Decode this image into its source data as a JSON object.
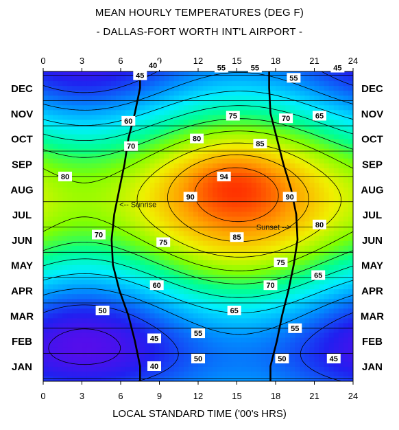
{
  "chart_data": {
    "type": "heatmap",
    "title": "MEAN HOURLY TEMPERATURES (DEG F)",
    "subtitle": "- DALLAS-FORT WORTH INT'L AIRPORT -",
    "xlabel": "LOCAL STANDARD TIME ('00's HRS)",
    "ylabel": "",
    "xlim": [
      0,
      24
    ],
    "x_ticks": [
      "0",
      "3",
      "6",
      "9",
      "12",
      "15",
      "18",
      "21",
      "24"
    ],
    "months": [
      "JAN",
      "FEB",
      "MAR",
      "APR",
      "MAY",
      "JUN",
      "JUL",
      "AUG",
      "SEP",
      "OCT",
      "NOV",
      "DEC"
    ],
    "contour_levels": [
      40,
      45,
      50,
      55,
      60,
      65,
      70,
      75,
      80,
      85,
      90,
      94
    ],
    "contour_labels": [
      {
        "text": "40",
        "hour": 8.5,
        "month": 11.9
      },
      {
        "text": "45",
        "hour": 7.5,
        "month": 11.5
      },
      {
        "text": "55",
        "hour": 13.8,
        "month": 11.8
      },
      {
        "text": "55",
        "hour": 16.4,
        "month": 11.8
      },
      {
        "text": "45",
        "hour": 22.8,
        "month": 11.8
      },
      {
        "text": "55",
        "hour": 19.4,
        "month": 11.4
      },
      {
        "text": "60",
        "hour": 6.6,
        "month": 9.7
      },
      {
        "text": "75",
        "hour": 14.7,
        "month": 9.9
      },
      {
        "text": "70",
        "hour": 18.8,
        "month": 9.8
      },
      {
        "text": "65",
        "hour": 21.4,
        "month": 9.9
      },
      {
        "text": "70",
        "hour": 6.8,
        "month": 8.7
      },
      {
        "text": "80",
        "hour": 11.9,
        "month": 9.0
      },
      {
        "text": "85",
        "hour": 16.8,
        "month": 8.8
      },
      {
        "text": "80",
        "hour": 1.7,
        "month": 7.5
      },
      {
        "text": "94",
        "hour": 14.0,
        "month": 7.5
      },
      {
        "text": "90",
        "hour": 11.4,
        "month": 6.7
      },
      {
        "text": "90",
        "hour": 19.1,
        "month": 6.7
      },
      {
        "text": "80",
        "hour": 21.4,
        "month": 5.6
      },
      {
        "text": "70",
        "hour": 4.3,
        "month": 5.2
      },
      {
        "text": "75",
        "hour": 9.3,
        "month": 4.9
      },
      {
        "text": "85",
        "hour": 15.0,
        "month": 5.1
      },
      {
        "text": "75",
        "hour": 18.4,
        "month": 4.1
      },
      {
        "text": "65",
        "hour": 21.3,
        "month": 3.6
      },
      {
        "text": "60",
        "hour": 8.8,
        "month": 3.2
      },
      {
        "text": "70",
        "hour": 17.6,
        "month": 3.2
      },
      {
        "text": "50",
        "hour": 4.6,
        "month": 2.2
      },
      {
        "text": "65",
        "hour": 14.8,
        "month": 2.2
      },
      {
        "text": "55",
        "hour": 12.0,
        "month": 1.3
      },
      {
        "text": "55",
        "hour": 19.5,
        "month": 1.5
      },
      {
        "text": "45",
        "hour": 8.6,
        "month": 1.1
      },
      {
        "text": "50",
        "hour": 12.0,
        "month": 0.3
      },
      {
        "text": "50",
        "hour": 18.5,
        "month": 0.3
      },
      {
        "text": "45",
        "hour": 22.5,
        "month": 0.3
      },
      {
        "text": "40",
        "hour": 8.6,
        "month": 0.0
      }
    ],
    "annotations": [
      {
        "text": "<-- Sunrise",
        "hour": 5.9,
        "month": 6.4
      },
      {
        "text": "Sunset -->",
        "hour": 16.5,
        "month": 5.5
      }
    ],
    "sunrise_hours": [
      7.5,
      7.1,
      6.6,
      5.9,
      5.4,
      5.3,
      5.5,
      5.9,
      6.3,
      6.6,
      7.1,
      7.5
    ],
    "sunset_hours": [
      17.6,
      18.1,
      18.5,
      19.0,
      19.4,
      19.7,
      19.6,
      19.2,
      18.6,
      18.1,
      17.6,
      17.5
    ],
    "colorscale": [
      "#7a00e8",
      "#2020f0",
      "#0090ff",
      "#00f0ff",
      "#00ff90",
      "#80ff00",
      "#f0f000",
      "#ffa000",
      "#ff3000",
      "#ff0000"
    ]
  }
}
